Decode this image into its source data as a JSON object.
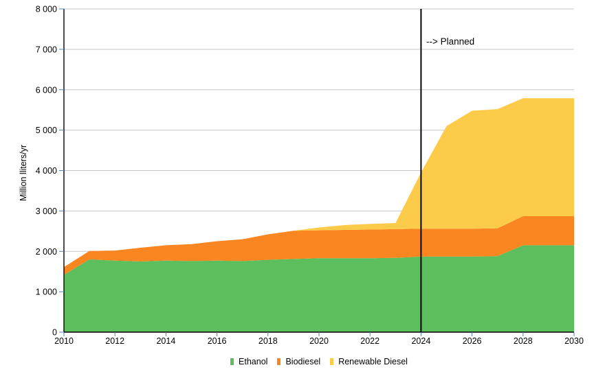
{
  "chart_data": {
    "type": "area",
    "stacked": true,
    "title": "",
    "xlabel": "",
    "ylabel": "Million lliters/yr",
    "x": [
      2010,
      2011,
      2012,
      2013,
      2014,
      2015,
      2016,
      2017,
      2018,
      2019,
      2020,
      2021,
      2022,
      2023,
      2024,
      2025,
      2026,
      2027,
      2028,
      2029,
      2030
    ],
    "xlim": [
      2010,
      2030
    ],
    "ylim": [
      0,
      8000
    ],
    "series": [
      {
        "name": "Ethanol",
        "color": "#5cbe5c",
        "values": [
          1420,
          1800,
          1770,
          1750,
          1770,
          1760,
          1770,
          1760,
          1790,
          1810,
          1830,
          1830,
          1830,
          1840,
          1870,
          1870,
          1870,
          1880,
          2150,
          2150,
          2150
        ]
      },
      {
        "name": "Biodiesel",
        "color": "#f98620",
        "values": [
          190,
          210,
          250,
          340,
          380,
          420,
          480,
          540,
          630,
          700,
          690,
          700,
          710,
          710,
          690,
          690,
          690,
          690,
          720,
          720,
          720
        ]
      },
      {
        "name": "Renewable Diesel",
        "color": "#fdcb4a",
        "values": [
          0,
          0,
          0,
          0,
          0,
          0,
          0,
          0,
          0,
          0,
          70,
          120,
          140,
          150,
          1390,
          2540,
          2920,
          2950,
          2920,
          2920,
          2920
        ]
      }
    ],
    "yticks": [
      0,
      1000,
      2000,
      3000,
      4000,
      5000,
      6000,
      7000,
      8000
    ],
    "ytick_labels": [
      "0",
      "1 000",
      "2 000",
      "3 000",
      "4 000",
      "5 000",
      "6 000",
      "7 000",
      "8 000"
    ],
    "xticks": [
      2010,
      2012,
      2014,
      2016,
      2018,
      2020,
      2022,
      2024,
      2026,
      2028,
      2030
    ],
    "xtick_labels": [
      "2010",
      "2012",
      "2014",
      "2016",
      "2018",
      "2020",
      "2022",
      "2024",
      "2026",
      "2028",
      "2030"
    ],
    "grid": "horizontal-only",
    "legend_position": "bottom-center",
    "annotation": {
      "text": "--> Planned",
      "x": 2024
    },
    "planned_line_x": 2024,
    "colors": {
      "grid": "#c6c6c6",
      "axis": "#000000",
      "tick": "#4f81bd",
      "planned_line": "#000000",
      "text": "#000000"
    }
  }
}
